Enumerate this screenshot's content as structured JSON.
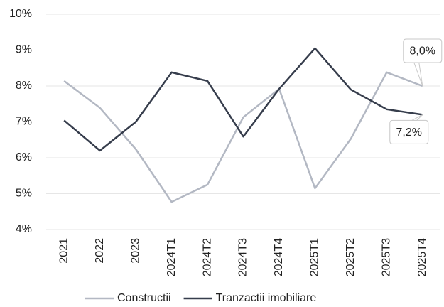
{
  "chart_data": {
    "type": "line",
    "categories": [
      "2021",
      "2022",
      "2023",
      "2024T1",
      "2024T2",
      "2024T3",
      "2024T4",
      "2025T1",
      "2025T2",
      "2025T3",
      "2025T4"
    ],
    "series": [
      {
        "name": "Constructii",
        "color": "#b3b8c3",
        "values": [
          8.14,
          7.39,
          6.24,
          4.77,
          5.25,
          7.13,
          7.92,
          5.15,
          6.53,
          8.38,
          8.0
        ],
        "value_labels": [
          null,
          null,
          null,
          null,
          null,
          null,
          null,
          null,
          null,
          null,
          "8,0%"
        ]
      },
      {
        "name": "Tranzactii imobiliare",
        "color": "#363d4c",
        "values": [
          7.04,
          6.2,
          7.0,
          8.38,
          8.14,
          6.59,
          7.92,
          9.05,
          7.9,
          7.35,
          7.2
        ],
        "value_labels": [
          null,
          null,
          null,
          null,
          null,
          null,
          null,
          null,
          null,
          null,
          "7,2%"
        ]
      }
    ],
    "ylim": [
      4,
      10
    ],
    "yticks": [
      {
        "value": 4,
        "label": "4%"
      },
      {
        "value": 5,
        "label": "5%"
      },
      {
        "value": 6,
        "label": "6%"
      },
      {
        "value": 7,
        "label": "7%"
      },
      {
        "value": 8,
        "label": "8%"
      },
      {
        "value": 9,
        "label": "9%"
      },
      {
        "value": 10,
        "label": "10%"
      }
    ],
    "grid": true,
    "legend": "bottom"
  }
}
